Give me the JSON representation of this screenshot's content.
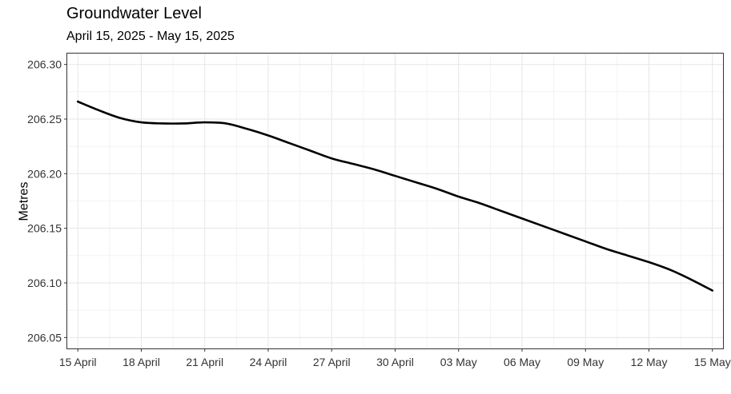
{
  "chart_data": {
    "type": "line",
    "title": "Groundwater Level",
    "subtitle": "April 15, 2025 - May 15, 2025",
    "xlabel": "",
    "ylabel": "Metres",
    "xlim": [
      "2025-04-14T12:00",
      "2025-05-15T12:00"
    ],
    "ylim": [
      206.04,
      206.31
    ],
    "y_ticks": [
      206.05,
      206.1,
      206.15,
      206.2,
      206.25,
      206.3
    ],
    "y_tick_labels": [
      "206.05",
      "206.10",
      "206.15",
      "206.20",
      "206.25",
      "206.30"
    ],
    "x_ticks": [
      "2025-04-15",
      "2025-04-18",
      "2025-04-21",
      "2025-04-24",
      "2025-04-27",
      "2025-04-30",
      "2025-05-03",
      "2025-05-06",
      "2025-05-09",
      "2025-05-12",
      "2025-05-15"
    ],
    "x_tick_labels": [
      "15 April",
      "18 April",
      "21 April",
      "24 April",
      "27 April",
      "30 April",
      "03 May",
      "06 May",
      "09 May",
      "12 May",
      "15 May"
    ],
    "grid": true,
    "series": [
      {
        "color": "#000000",
        "x": [
          "2025-04-15",
          "2025-04-16",
          "2025-04-17",
          "2025-04-18",
          "2025-04-19",
          "2025-04-20",
          "2025-04-21",
          "2025-04-22",
          "2025-04-23",
          "2025-04-24",
          "2025-04-25",
          "2025-04-26",
          "2025-04-27",
          "2025-04-28",
          "2025-04-29",
          "2025-04-30",
          "2025-05-01",
          "2025-05-02",
          "2025-05-03",
          "2025-05-04",
          "2025-05-05",
          "2025-05-06",
          "2025-05-07",
          "2025-05-08",
          "2025-05-09",
          "2025-05-10",
          "2025-05-11",
          "2025-05-12",
          "2025-05-13",
          "2025-05-14",
          "2025-05-15"
        ],
        "y": [
          206.266,
          206.258,
          206.251,
          206.247,
          206.246,
          206.246,
          206.247,
          206.246,
          206.241,
          206.235,
          206.228,
          206.221,
          206.214,
          206.209,
          206.204,
          206.198,
          206.192,
          206.186,
          206.179,
          206.173,
          206.166,
          206.159,
          206.152,
          206.145,
          206.138,
          206.131,
          206.125,
          206.119,
          206.112,
          206.103,
          206.093
        ]
      }
    ]
  }
}
